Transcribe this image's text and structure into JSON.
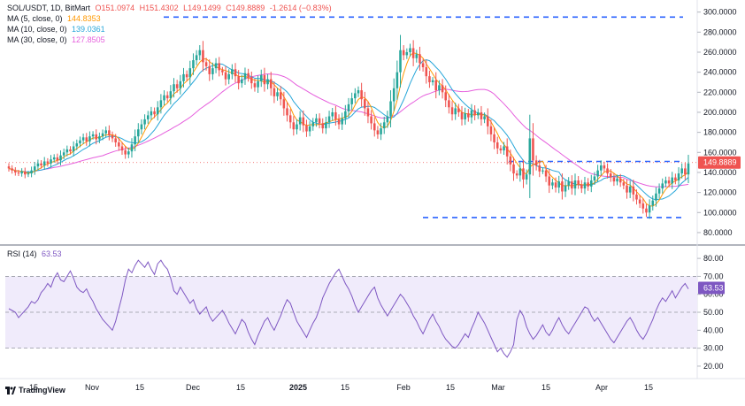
{
  "header": {
    "symbol": "SOL/USDT, 1D, BitMart",
    "open": "O151.0974",
    "high": "H151.4302",
    "low": "L149.1499",
    "close": "C149.8889",
    "change": "-1.2614 (−0.83%)"
  },
  "ma_legend": [
    {
      "label": "MA (5, close, 0)",
      "value": "144.8353",
      "color": "#ff9800"
    },
    {
      "label": "MA (10, close, 0)",
      "value": "139.0361",
      "color": "#26a6d9"
    },
    {
      "label": "MA (30, close, 0)",
      "value": "127.8505",
      "color": "#e65fdd"
    }
  ],
  "rsi_legend": {
    "label": "RSI (14)",
    "value": "63.53",
    "color": "#7e57c2"
  },
  "brand": "TradingView",
  "colors": {
    "up": "#26a69a",
    "down": "#ef5350",
    "dash": "#2962ff",
    "rsi_fill": "#f0ebfb",
    "last_price_bg": "#ef5350"
  },
  "chart_data": {
    "type": "candlestick",
    "x_tick_labels": [
      "15",
      "Nov",
      "15",
      "Dec",
      "15",
      "2025",
      "15",
      "Feb",
      "15",
      "Mar",
      "15",
      "Apr",
      "15"
    ],
    "y_tick_labels": [
      "300.0000",
      "280.0000",
      "260.0000",
      "240.0000",
      "220.0000",
      "200.0000",
      "180.0000",
      "160.0000",
      "140.0000",
      "120.0000",
      "100.0000",
      "80.0000"
    ],
    "price_ylim": [
      72,
      305
    ],
    "last_price_label": "149.8889",
    "last_price": 149.8889,
    "rsi_ylim": [
      18,
      84
    ],
    "rsi_tick_labels": [
      "80.00",
      "70.00",
      "60.00",
      "50.00",
      "40.00",
      "30.00",
      "20.00"
    ],
    "rsi_last_label": "63.53",
    "rsi_last": 63.53,
    "rsi_band": [
      30,
      70
    ],
    "rsi_mid": 50,
    "resistance_levels": [
      295,
      151,
      95
    ],
    "price_close_series": [
      144,
      142,
      140,
      139,
      141,
      138,
      139,
      142,
      146,
      149,
      147,
      151,
      149,
      153,
      155,
      152,
      157,
      160,
      163,
      161,
      166,
      169,
      172,
      175,
      171,
      176,
      178,
      173,
      176,
      179,
      182,
      177,
      174,
      170,
      166,
      162,
      158,
      161,
      168,
      176,
      183,
      188,
      193,
      197,
      201,
      198,
      205,
      212,
      217,
      214,
      221,
      228,
      224,
      231,
      238,
      235,
      244,
      252,
      257,
      262,
      250,
      246,
      238,
      244,
      249,
      242,
      240,
      233,
      238,
      243,
      236,
      229,
      233,
      239,
      235,
      229,
      225,
      231,
      237,
      228,
      233,
      224,
      216,
      220,
      213,
      204,
      197,
      190,
      183,
      188,
      195,
      187,
      181,
      186,
      190,
      194,
      189,
      184,
      190,
      196,
      200,
      193,
      188,
      194,
      201,
      208,
      214,
      219,
      222,
      213,
      204,
      196,
      189,
      182,
      178,
      184,
      190,
      196,
      211,
      224,
      240,
      262,
      257,
      260,
      264,
      254,
      258,
      249,
      245,
      236,
      230,
      232,
      222,
      227,
      220,
      212,
      205,
      198,
      204,
      200,
      193,
      199,
      195,
      202,
      197,
      200,
      193,
      196,
      186,
      178,
      170,
      164,
      162,
      166,
      156,
      148,
      139,
      137,
      144,
      133,
      138,
      174,
      152,
      147,
      141,
      142,
      136,
      127,
      130,
      125,
      131,
      121,
      127,
      131,
      124,
      132,
      128,
      124,
      130,
      126,
      132,
      136,
      142,
      147,
      144,
      139,
      135,
      131,
      134,
      130,
      127,
      120,
      126,
      118,
      113,
      109,
      104,
      100,
      107,
      112,
      119,
      124,
      129,
      132,
      129,
      135,
      132,
      139,
      144,
      138,
      149
    ],
    "rsi_series": [
      52,
      51,
      50,
      47,
      49,
      51,
      53,
      56,
      55,
      57,
      61,
      63,
      66,
      64,
      69,
      72,
      68,
      67,
      70,
      73,
      69,
      64,
      62,
      61,
      63,
      59,
      56,
      52,
      49,
      46,
      44,
      42,
      40,
      45,
      52,
      59,
      68,
      74,
      72,
      76,
      79,
      77,
      75,
      78,
      74,
      71,
      77,
      79,
      76,
      74,
      69,
      62,
      60,
      64,
      61,
      58,
      55,
      57,
      52,
      49,
      51,
      53,
      48,
      45,
      47,
      49,
      51,
      48,
      44,
      41,
      38,
      42,
      46,
      44,
      39,
      35,
      32,
      37,
      41,
      45,
      47,
      43,
      40,
      44,
      48,
      53,
      57,
      55,
      50,
      45,
      42,
      39,
      36,
      40,
      44,
      47,
      52,
      58,
      62,
      66,
      69,
      72,
      74,
      70,
      66,
      63,
      59,
      54,
      50,
      53,
      56,
      59,
      62,
      64,
      58,
      54,
      51,
      48,
      51,
      54,
      57,
      60,
      58,
      55,
      52,
      48,
      45,
      41,
      38,
      42,
      46,
      49,
      45,
      42,
      38,
      35,
      33,
      31,
      30,
      32,
      35,
      38,
      36,
      41,
      45,
      50,
      47,
      44,
      40,
      36,
      32,
      28,
      30,
      27,
      25,
      28,
      32,
      46,
      51,
      48,
      42,
      38,
      35,
      37,
      40,
      43,
      39,
      37,
      40,
      44,
      47,
      43,
      40,
      38,
      41,
      44,
      47,
      50,
      53,
      52,
      48,
      45,
      47,
      44,
      41,
      38,
      35,
      33,
      36,
      39,
      42,
      45,
      47,
      44,
      40,
      37,
      35,
      38,
      42,
      46,
      51,
      55,
      58,
      56,
      59,
      62,
      58,
      61,
      64,
      66,
      63
    ]
  }
}
